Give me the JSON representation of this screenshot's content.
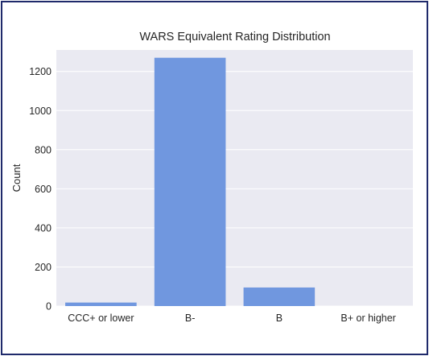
{
  "chart_data": {
    "type": "bar",
    "title": "WARS Equivalent Rating Distribution",
    "xlabel": "",
    "ylabel": "Count",
    "categories": [
      "CCC+ or lower",
      "B-",
      "B",
      "B+ or higher"
    ],
    "values": [
      18,
      1270,
      95,
      0
    ],
    "ylim": [
      0,
      1310
    ],
    "yticks": [
      0,
      200,
      400,
      600,
      800,
      1000,
      1200
    ],
    "grid": true,
    "colors": {
      "bar": "#7097df",
      "plot_background": "#eaeaf2",
      "grid": "#ffffff",
      "frame": "#1f2a6b"
    }
  }
}
